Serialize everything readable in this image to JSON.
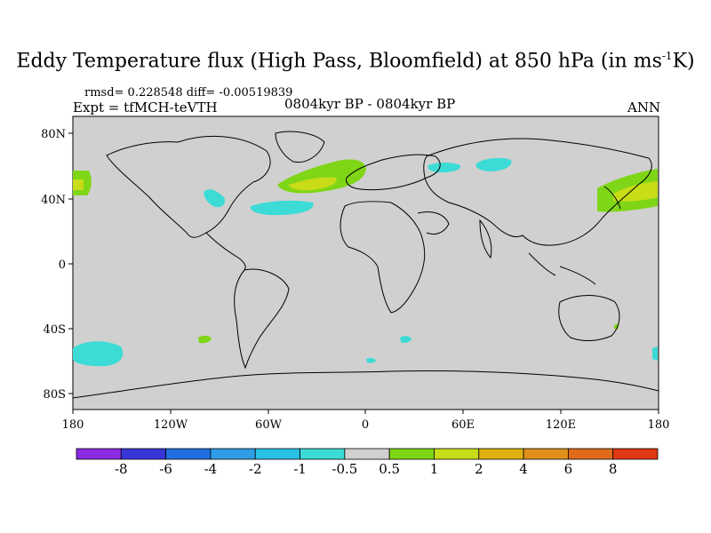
{
  "title": {
    "prefix": "Eddy Temperature flux (High Pass, Bloomfield) at 850 hPa (in ms",
    "sup": "-1",
    "suffix": "K)"
  },
  "stats": "rmsd= 0.228548 diff= -0.00519839",
  "experiment": "Expt = tfMCH-teVTH",
  "period": "0804kyr BP - 0804kyr BP",
  "season": "ANN",
  "axes": {
    "lat_labels": [
      "80N",
      "40N",
      "0",
      "40S",
      "80S"
    ],
    "lon_labels": [
      "180",
      "120W",
      "60W",
      "0",
      "60E",
      "120E",
      "180"
    ]
  },
  "colorbar": {
    "colors": [
      "#8a2be2",
      "#3737d8",
      "#1f6fe0",
      "#2e9de6",
      "#29c0e6",
      "#3ddbd6",
      "#d0d0d0",
      "#7fd616",
      "#c8dc18",
      "#e0b210",
      "#e0901a",
      "#e06a1a",
      "#e03a14"
    ],
    "labels": [
      "-8",
      "-6",
      "-4",
      "-2",
      "-1",
      "-0.5",
      "0.5",
      "1",
      "2",
      "4",
      "6",
      "8"
    ]
  },
  "colors": {
    "ocean_land": "#d0d0d0",
    "cyan": "#3ddbd6",
    "green": "#7fd616",
    "yellow": "#c8dc18"
  }
}
